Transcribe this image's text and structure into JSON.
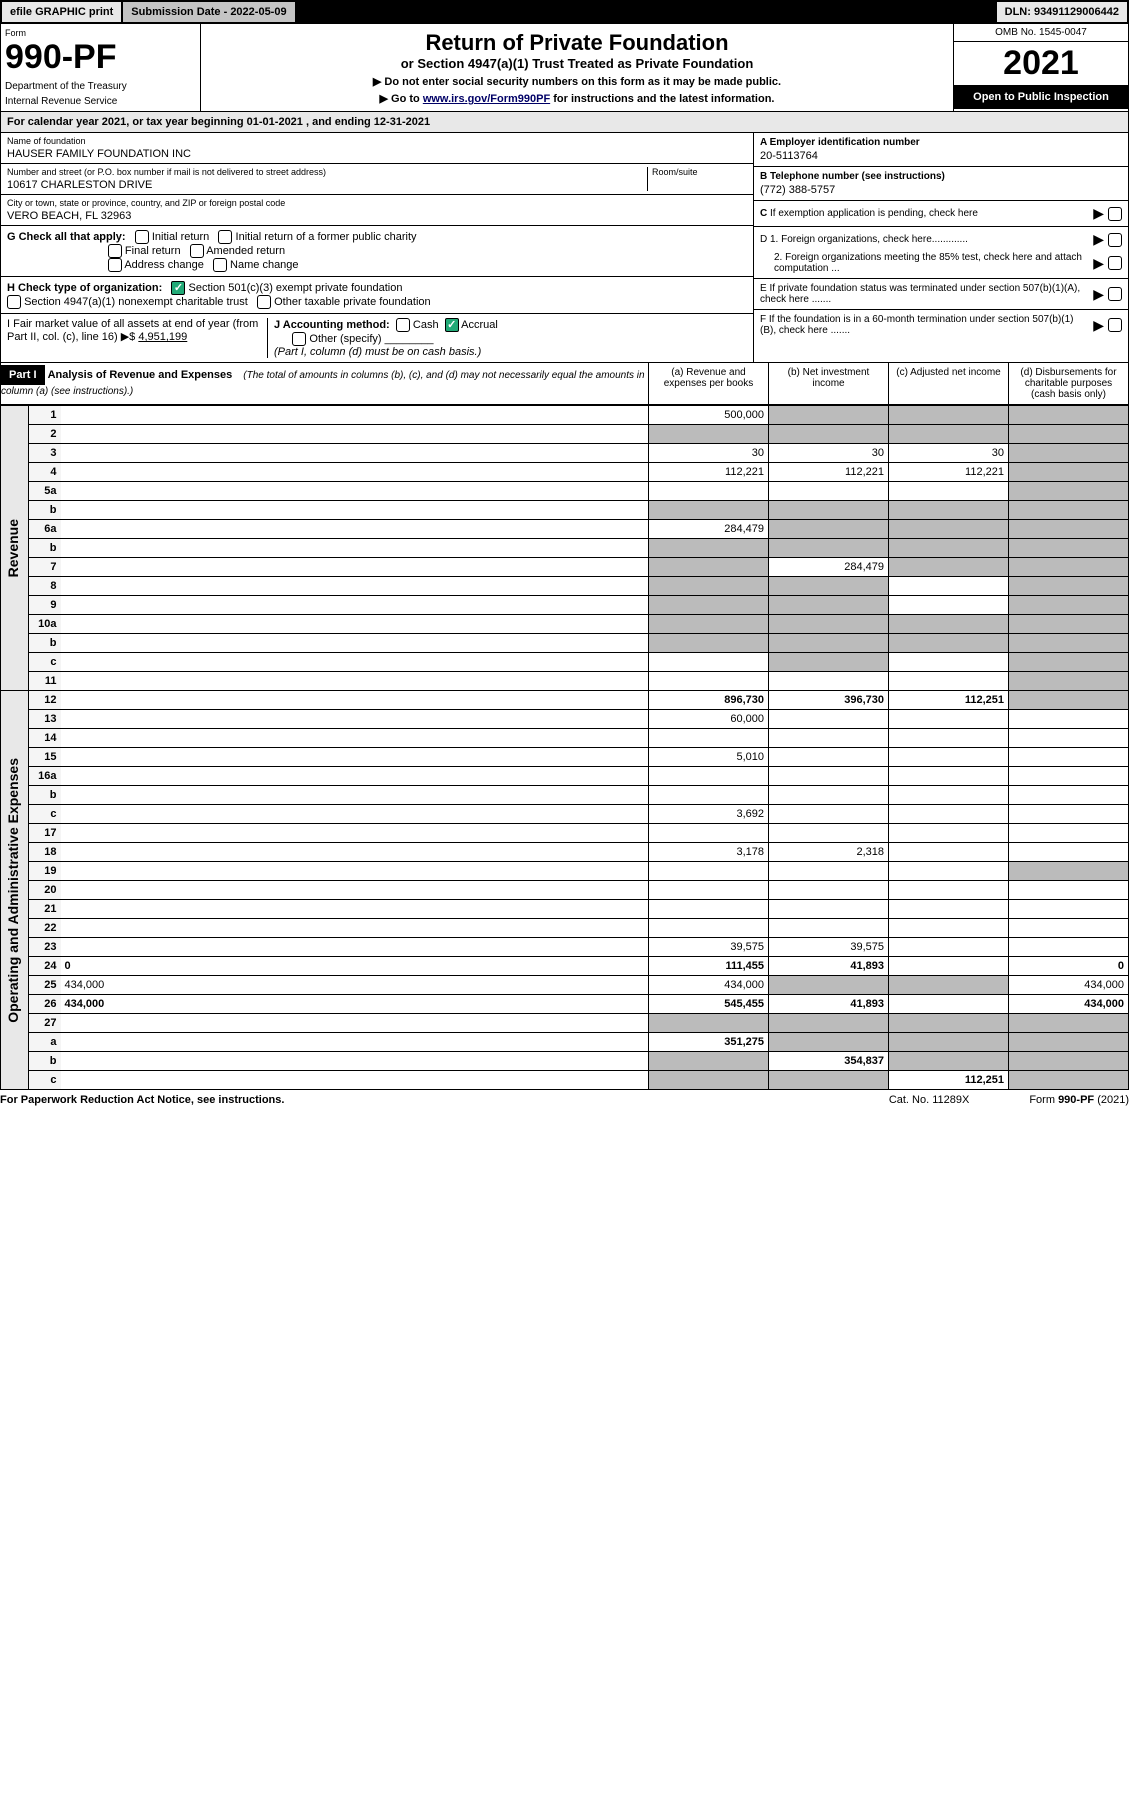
{
  "topbar": {
    "efile": "efile GRAPHIC print",
    "submission": "Submission Date - 2022-05-09",
    "dln": "DLN: 93491129006442"
  },
  "header": {
    "form_label": "Form",
    "form_num": "990-PF",
    "dept": "Department of the Treasury",
    "irs": "Internal Revenue Service",
    "title": "Return of Private Foundation",
    "subtitle": "or Section 4947(a)(1) Trust Treated as Private Foundation",
    "inst1": "▶ Do not enter social security numbers on this form as it may be made public.",
    "inst2_pre": "▶ Go to ",
    "inst2_link": "www.irs.gov/Form990PF",
    "inst2_post": " for instructions and the latest information.",
    "omb": "OMB No. 1545-0047",
    "year": "2021",
    "open": "Open to Public Inspection"
  },
  "calendar": "For calendar year 2021, or tax year beginning 01-01-2021                              , and ending 12-31-2021",
  "ident": {
    "name_label": "Name of foundation",
    "name": "HAUSER FAMILY FOUNDATION INC",
    "addr_label": "Number and street (or P.O. box number if mail is not delivered to street address)",
    "addr": "10617 CHARLESTON DRIVE",
    "room_label": "Room/suite",
    "city_label": "City or town, state or province, country, and ZIP or foreign postal code",
    "city": "VERO BEACH, FL  32963",
    "a_label": "A Employer identification number",
    "a_val": "20-5113764",
    "b_label": "B Telephone number (see instructions)",
    "b_val": "(772) 388-5757",
    "c_label": "C If exemption application is pending, check here",
    "d1": "D 1. Foreign organizations, check here.............",
    "d2": "2. Foreign organizations meeting the 85% test, check here and attach computation ...",
    "e": "E  If private foundation status was terminated under section 507(b)(1)(A), check here .......",
    "f": "F  If the foundation is in a 60-month termination under section 507(b)(1)(B), check here .......",
    "g_label": "G Check all that apply:",
    "g_opts": [
      "Initial return",
      "Initial return of a former public charity",
      "Final return",
      "Amended return",
      "Address change",
      "Name change"
    ],
    "h_label": "H Check type of organization:",
    "h1": "Section 501(c)(3) exempt private foundation",
    "h2": "Section 4947(a)(1) nonexempt charitable trust",
    "h3": "Other taxable private foundation",
    "i_label": "I Fair market value of all assets at end of year (from Part II, col. (c), line 16) ▶$",
    "i_val": "4,951,199",
    "j_label": "J Accounting method:",
    "j_cash": "Cash",
    "j_accrual": "Accrual",
    "j_other": "Other (specify)",
    "j_note": "(Part I, column (d) must be on cash basis.)"
  },
  "part1": {
    "label": "Part I",
    "title": "Analysis of Revenue and Expenses",
    "note": "(The total of amounts in columns (b), (c), and (d) may not necessarily equal the amounts in column (a) (see instructions).)",
    "col_a": "(a) Revenue and expenses per books",
    "col_b": "(b) Net investment income",
    "col_c": "(c) Adjusted net income",
    "col_d": "(d) Disbursements for charitable purposes (cash basis only)"
  },
  "vheaders": {
    "rev": "Revenue",
    "op": "Operating and Administrative Expenses"
  },
  "rows": [
    {
      "n": "1",
      "d": "",
      "a": "500,000",
      "b": "",
      "c": "",
      "shade": [
        "b",
        "c",
        "d"
      ]
    },
    {
      "n": "2",
      "d": "",
      "a": "",
      "b": "",
      "c": "",
      "shade": [
        "a",
        "b",
        "c",
        "d"
      ]
    },
    {
      "n": "3",
      "d": "",
      "a": "30",
      "b": "30",
      "c": "30",
      "shade": [
        "d"
      ]
    },
    {
      "n": "4",
      "d": "",
      "a": "112,221",
      "b": "112,221",
      "c": "112,221",
      "shade": [
        "d"
      ]
    },
    {
      "n": "5a",
      "d": "",
      "a": "",
      "b": "",
      "c": "",
      "shade": [
        "d"
      ]
    },
    {
      "n": "b",
      "d": "",
      "a": "",
      "b": "",
      "c": "",
      "shade": [
        "a",
        "b",
        "c",
        "d"
      ]
    },
    {
      "n": "6a",
      "d": "",
      "a": "284,479",
      "b": "",
      "c": "",
      "shade": [
        "b",
        "c",
        "d"
      ]
    },
    {
      "n": "b",
      "d": "",
      "a": "",
      "b": "",
      "c": "",
      "shade": [
        "a",
        "b",
        "c",
        "d"
      ]
    },
    {
      "n": "7",
      "d": "",
      "a": "",
      "b": "284,479",
      "c": "",
      "shade": [
        "a",
        "c",
        "d"
      ]
    },
    {
      "n": "8",
      "d": "",
      "a": "",
      "b": "",
      "c": "",
      "shade": [
        "a",
        "b",
        "d"
      ]
    },
    {
      "n": "9",
      "d": "",
      "a": "",
      "b": "",
      "c": "",
      "shade": [
        "a",
        "b",
        "d"
      ]
    },
    {
      "n": "10a",
      "d": "",
      "a": "",
      "b": "",
      "c": "",
      "shade": [
        "a",
        "b",
        "c",
        "d"
      ]
    },
    {
      "n": "b",
      "d": "",
      "a": "",
      "b": "",
      "c": "",
      "shade": [
        "a",
        "b",
        "c",
        "d"
      ]
    },
    {
      "n": "c",
      "d": "",
      "a": "",
      "b": "",
      "c": "",
      "shade": [
        "b",
        "d"
      ]
    },
    {
      "n": "11",
      "d": "",
      "a": "",
      "b": "",
      "c": "",
      "shade": [
        "d"
      ]
    },
    {
      "n": "12",
      "d": "",
      "a": "896,730",
      "b": "396,730",
      "c": "112,251",
      "bold": true,
      "shade": [
        "d"
      ]
    },
    {
      "n": "13",
      "d": "",
      "a": "60,000",
      "b": "",
      "c": ""
    },
    {
      "n": "14",
      "d": "",
      "a": "",
      "b": "",
      "c": ""
    },
    {
      "n": "15",
      "d": "",
      "a": "5,010",
      "b": "",
      "c": ""
    },
    {
      "n": "16a",
      "d": "",
      "a": "",
      "b": "",
      "c": ""
    },
    {
      "n": "b",
      "d": "",
      "a": "",
      "b": "",
      "c": ""
    },
    {
      "n": "c",
      "d": "",
      "a": "3,692",
      "b": "",
      "c": ""
    },
    {
      "n": "17",
      "d": "",
      "a": "",
      "b": "",
      "c": ""
    },
    {
      "n": "18",
      "d": "",
      "a": "3,178",
      "b": "2,318",
      "c": ""
    },
    {
      "n": "19",
      "d": "",
      "a": "",
      "b": "",
      "c": "",
      "shade": [
        "d"
      ]
    },
    {
      "n": "20",
      "d": "",
      "a": "",
      "b": "",
      "c": ""
    },
    {
      "n": "21",
      "d": "",
      "a": "",
      "b": "",
      "c": ""
    },
    {
      "n": "22",
      "d": "",
      "a": "",
      "b": "",
      "c": ""
    },
    {
      "n": "23",
      "d": "",
      "a": "39,575",
      "b": "39,575",
      "c": ""
    },
    {
      "n": "24",
      "d": "0",
      "a": "111,455",
      "b": "41,893",
      "c": "",
      "bold": true
    },
    {
      "n": "25",
      "d": "434,000",
      "a": "434,000",
      "b": "",
      "c": "",
      "shade": [
        "b",
        "c"
      ]
    },
    {
      "n": "26",
      "d": "434,000",
      "a": "545,455",
      "b": "41,893",
      "c": "",
      "bold": true
    },
    {
      "n": "27",
      "d": "",
      "a": "",
      "b": "",
      "c": "",
      "shade": [
        "a",
        "b",
        "c",
        "d"
      ]
    },
    {
      "n": "a",
      "d": "",
      "a": "351,275",
      "b": "",
      "c": "",
      "bold": true,
      "shade": [
        "b",
        "c",
        "d"
      ]
    },
    {
      "n": "b",
      "d": "",
      "a": "",
      "b": "354,837",
      "c": "",
      "bold": true,
      "shade": [
        "a",
        "c",
        "d"
      ]
    },
    {
      "n": "c",
      "d": "",
      "a": "",
      "b": "",
      "c": "112,251",
      "bold": true,
      "shade": [
        "a",
        "b",
        "d"
      ]
    }
  ],
  "footer": {
    "left": "For Paperwork Reduction Act Notice, see instructions.",
    "cat": "Cat. No. 11289X",
    "form": "Form 990-PF (2021)"
  },
  "colors": {
    "black": "#000000",
    "gray_bg": "#e8e8e8",
    "shade": "#bbbbbb",
    "link": "#000066",
    "check_green": "#22aa77"
  }
}
